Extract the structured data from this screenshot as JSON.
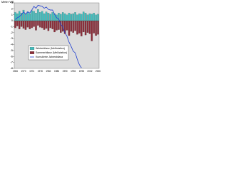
{
  "chart_data": {
    "type": "bar",
    "y_label": "Meter WE",
    "categories": [
      "1966",
      null,
      null,
      null,
      "1970",
      null,
      null,
      null,
      "1974",
      null,
      null,
      null,
      "1978",
      null,
      null,
      null,
      "1982",
      null,
      null,
      null,
      "1986",
      null,
      null,
      null,
      "1990",
      null,
      null,
      null,
      "1994",
      null,
      null,
      null,
      "1998",
      null,
      null,
      null,
      "2002",
      null,
      null,
      null,
      "2006"
    ],
    "series": [
      {
        "name": "Winterbilanz (Meßstation)",
        "color": "#3fbfbf",
        "values": [
          1.4,
          1.2,
          1.6,
          1.3,
          1.8,
          1.1,
          1.5,
          1.2,
          1.7,
          1.6,
          1.3,
          1.9,
          1.4,
          1.6,
          1.2,
          1.5,
          1.3,
          1.1,
          1.4,
          1.2,
          1.0,
          1.3,
          1.1,
          1.4,
          1.2,
          1.0,
          1.3,
          1.1,
          1.2,
          1.4,
          1.0,
          1.2,
          1.1,
          1.5,
          1.3,
          1.0,
          1.2,
          1.1,
          1.3,
          1.0,
          1.1
        ]
      },
      {
        "name": "Sommerbilanz (Meßstation)",
        "color": "#8b2e3a",
        "values": [
          -1.2,
          -0.9,
          -1.4,
          -1.0,
          -1.3,
          -1.5,
          -1.1,
          -1.4,
          -1.2,
          -1.0,
          -1.6,
          -0.8,
          -1.1,
          -1.2,
          -1.5,
          -1.3,
          -1.7,
          -1.2,
          -1.4,
          -1.9,
          -1.6,
          -1.5,
          -2.0,
          -1.8,
          -2.2,
          -1.6,
          -2.5,
          -1.8,
          -2.0,
          -1.7,
          -2.3,
          -2.1,
          -2.6,
          -1.9,
          -2.4,
          -2.0,
          -2.2,
          -3.4,
          -2.1,
          -2.5,
          -2.3
        ]
      },
      {
        "name": "Kumulierte Jahresbilanz",
        "color": "#1f3fd0",
        "type": "line",
        "values": [
          0.2,
          0.5,
          0.7,
          1.0,
          1.5,
          1.1,
          1.5,
          1.3,
          1.8,
          2.4,
          2.1,
          2.6,
          2.5,
          2.4,
          2.1,
          2.3,
          1.9,
          1.8,
          1.8,
          1.1,
          0.5,
          0.3,
          -0.6,
          -1.0,
          -2.0,
          -2.6,
          -3.6,
          -4.3,
          -5.1,
          -5.4,
          -6.5,
          -7.4,
          -7.9,
          null,
          null,
          null,
          null,
          null,
          null,
          null,
          null
        ]
      }
    ],
    "ylim": [
      -8,
      3
    ],
    "yticks": [
      -8,
      -7,
      -6,
      -5,
      -4,
      -3,
      -2,
      -1,
      0,
      1,
      2,
      3
    ],
    "grid": false,
    "legend": "lower-left"
  }
}
